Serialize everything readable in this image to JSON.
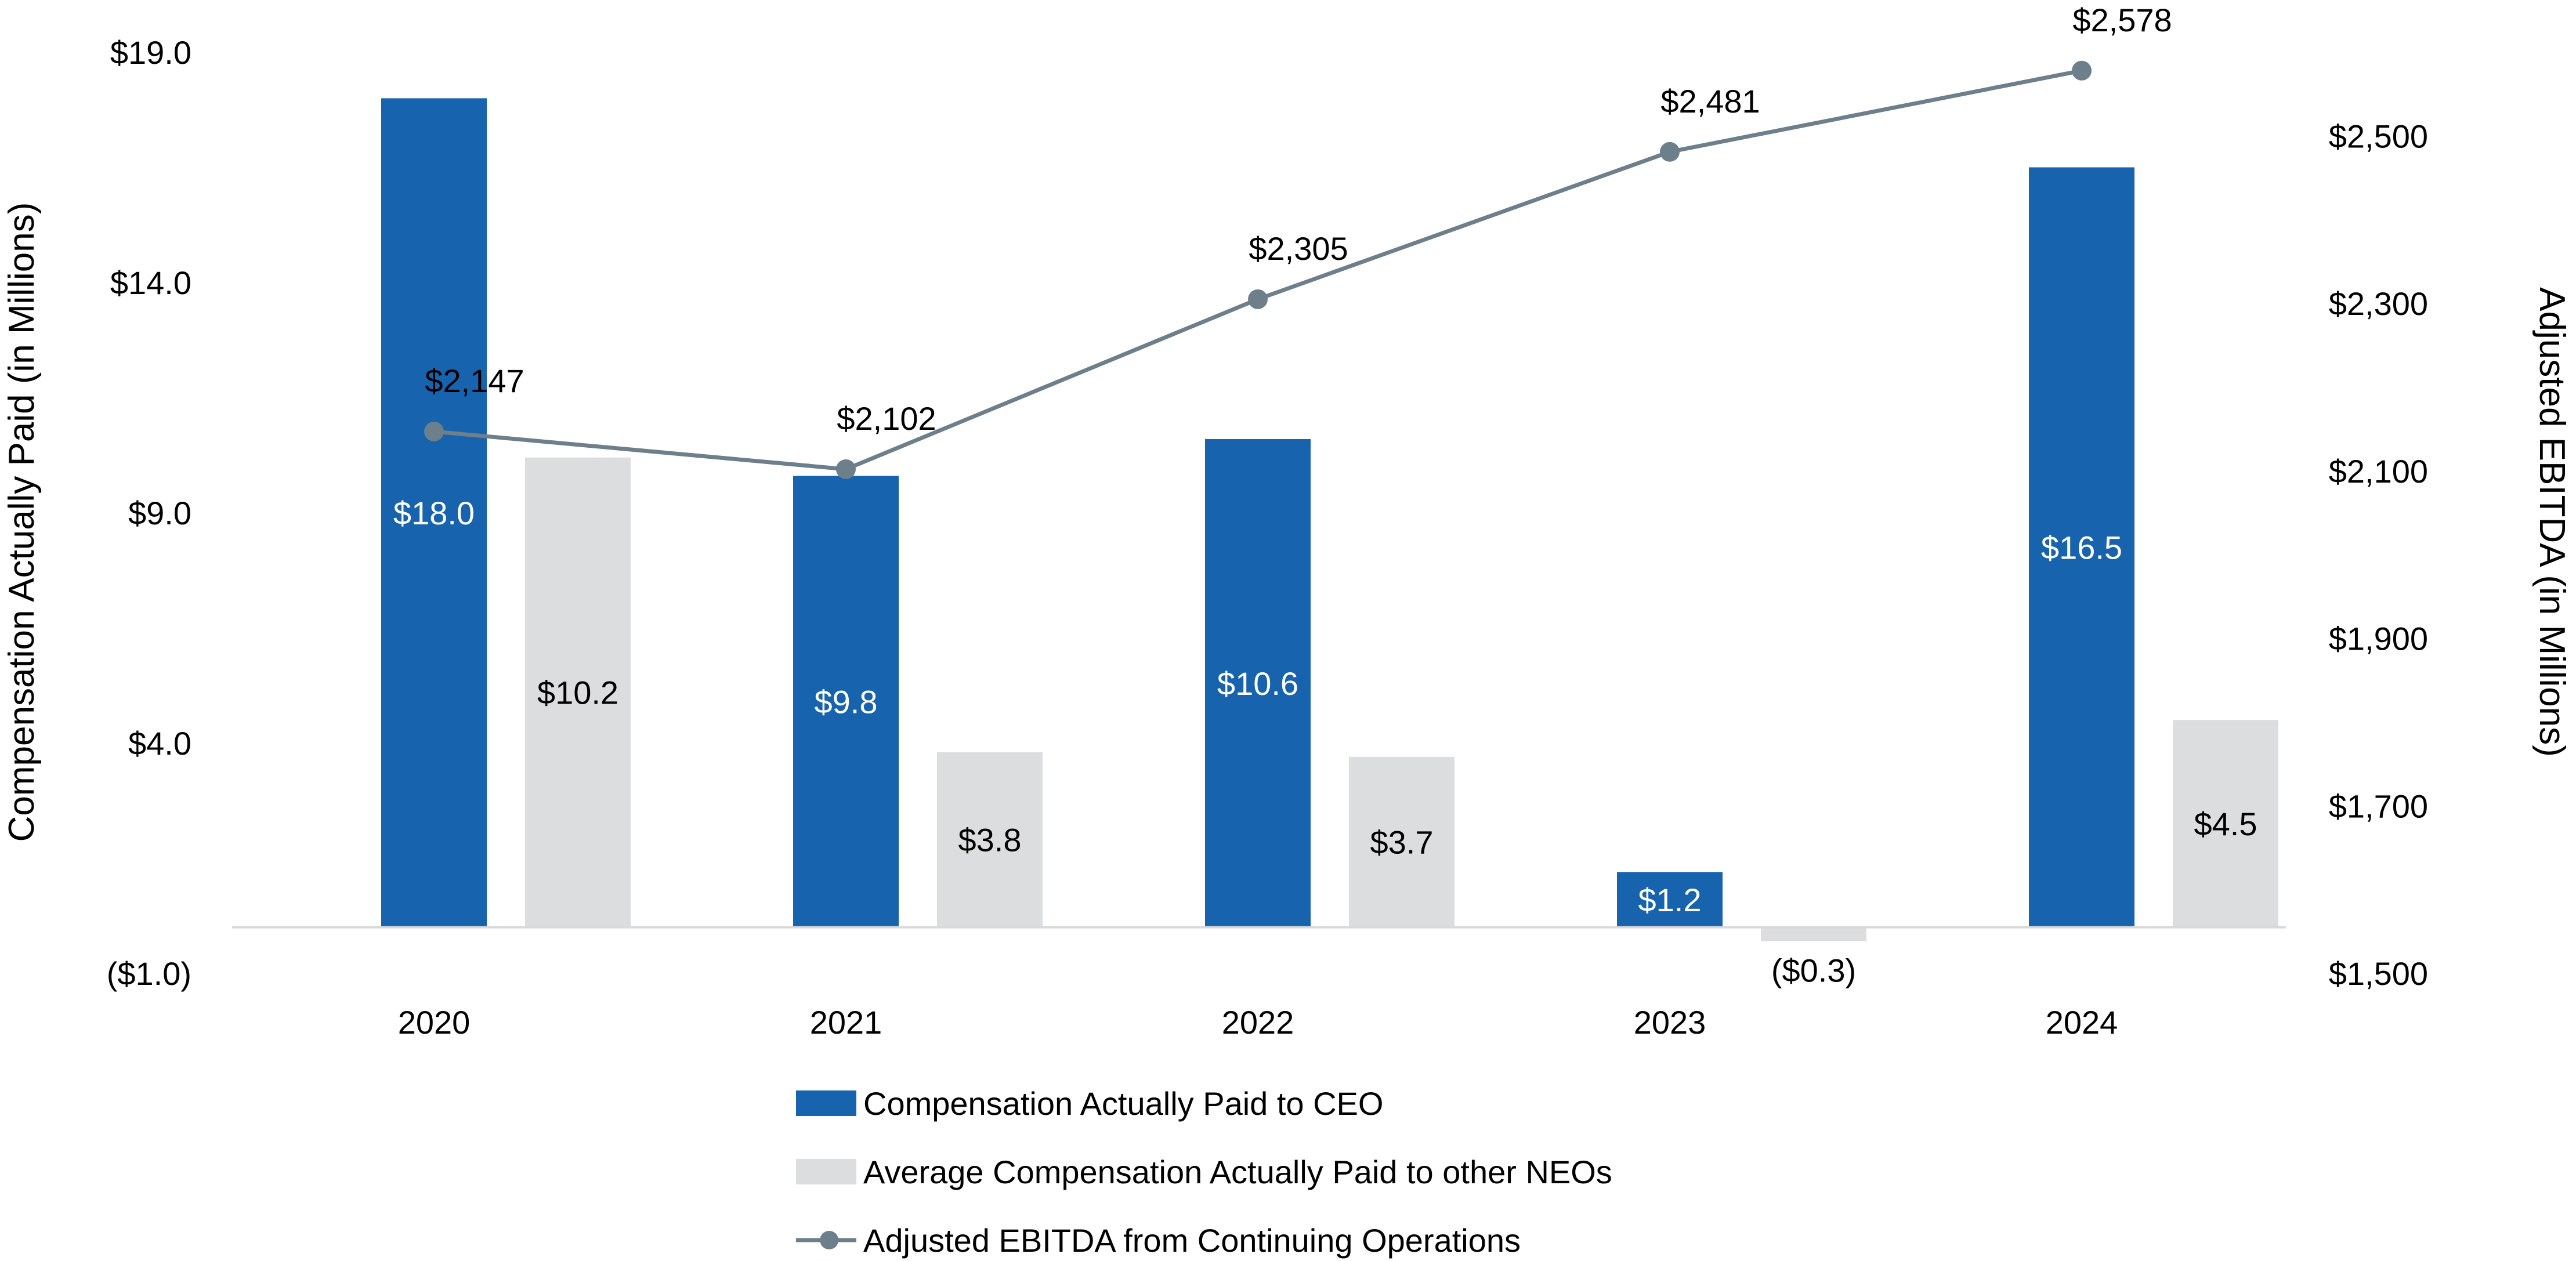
{
  "chart_data": {
    "type": "bar",
    "categories": [
      "2020",
      "2021",
      "2022",
      "2023",
      "2024"
    ],
    "series": [
      {
        "name": "Compensation Actually Paid to CEO",
        "kind": "bar",
        "axis": "left",
        "color": "#1763AE",
        "label_color": "#FFFFFF",
        "values": [
          18.0,
          9.8,
          10.6,
          1.2,
          16.5
        ],
        "labels": [
          "$18.0",
          "$9.8",
          "$10.6",
          "$1.2",
          "$16.5"
        ]
      },
      {
        "name": "Average Compensation Actually Paid to other NEOs",
        "kind": "bar",
        "axis": "left",
        "color": "#DCDDDE",
        "label_color": "#000000",
        "values": [
          10.2,
          3.8,
          3.7,
          -0.3,
          4.5
        ],
        "labels": [
          "$10.2",
          "$3.8",
          "$3.7",
          "($0.3)",
          "$4.5"
        ]
      },
      {
        "name": "Adjusted EBITDA from Continuing Operations",
        "kind": "line",
        "axis": "right",
        "color": "#6D7F8B",
        "values": [
          2147,
          2102,
          2305,
          2481,
          2578
        ],
        "labels": [
          "$2,147",
          "$2,102",
          "$2,305",
          "$2,481",
          "$2,578"
        ]
      }
    ],
    "y_left": {
      "label": "Compensation Actually Paid (in Millions)",
      "min": -1.0,
      "max": 19.0,
      "ticks": [
        19.0,
        14.0,
        9.0,
        4.0,
        -1.0
      ],
      "tick_labels": [
        "$19.0",
        "$14.0",
        "$9.0",
        "$4.0",
        "($1.0)"
      ]
    },
    "y_right": {
      "label": "Adjusted EBITDA (in Millions)",
      "min": 1500,
      "max": 2600,
      "ticks": [
        2500,
        2300,
        2100,
        1900,
        1700,
        1500
      ],
      "tick_labels": [
        "$2,500",
        "$2,300",
        "$2,100",
        "$1,900",
        "$1,700",
        "$1,500"
      ]
    },
    "baseline_color": "#D9D9D9",
    "legend_position": "bottom"
  }
}
